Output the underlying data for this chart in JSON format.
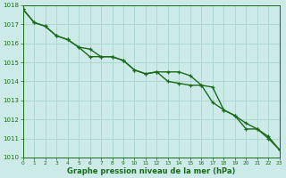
{
  "line1_x": [
    0,
    1,
    2,
    3,
    4,
    5,
    6,
    7,
    8,
    9,
    10,
    11,
    12,
    13,
    14,
    15,
    16,
    17,
    18,
    19,
    20,
    21,
    22,
    23
  ],
  "line1_y": [
    1017.8,
    1017.1,
    1016.9,
    1016.4,
    1016.2,
    1015.8,
    1015.3,
    1015.3,
    1015.3,
    1015.1,
    1014.6,
    1014.4,
    1014.5,
    1014.5,
    1014.5,
    1014.3,
    1013.8,
    1013.7,
    1012.5,
    1012.2,
    1011.8,
    1011.5,
    1011.1,
    1010.4
  ],
  "line2_x": [
    0,
    1,
    2,
    3,
    4,
    5,
    6,
    7,
    8,
    9,
    10,
    11,
    12,
    13,
    14,
    15,
    16,
    17,
    18,
    19,
    20,
    21,
    22,
    23
  ],
  "line2_y": [
    1017.8,
    1017.1,
    1016.9,
    1016.4,
    1016.2,
    1015.8,
    1015.7,
    1015.3,
    1015.3,
    1015.1,
    1014.6,
    1014.4,
    1014.5,
    1014.0,
    1013.9,
    1013.8,
    1013.8,
    1012.9,
    1012.5,
    1012.2,
    1011.5,
    1011.5,
    1011.0,
    1010.4
  ],
  "line_color": "#1a6b1a",
  "marker": "+",
  "markersize": 3.5,
  "linewidth": 1.0,
  "bg_color": "#cceae7",
  "grid_color": "#aad4ce",
  "xlabel": "Graphe pression niveau de la mer (hPa)",
  "xlabel_color": "#1a6b1a",
  "tick_color": "#1a6b1a",
  "ylim": [
    1010,
    1018
  ],
  "xlim": [
    0,
    23
  ],
  "yticks": [
    1010,
    1011,
    1012,
    1013,
    1014,
    1015,
    1016,
    1017,
    1018
  ],
  "xticks": [
    0,
    1,
    2,
    3,
    4,
    5,
    6,
    7,
    8,
    9,
    10,
    11,
    12,
    13,
    14,
    15,
    16,
    17,
    18,
    19,
    20,
    21,
    22,
    23
  ]
}
